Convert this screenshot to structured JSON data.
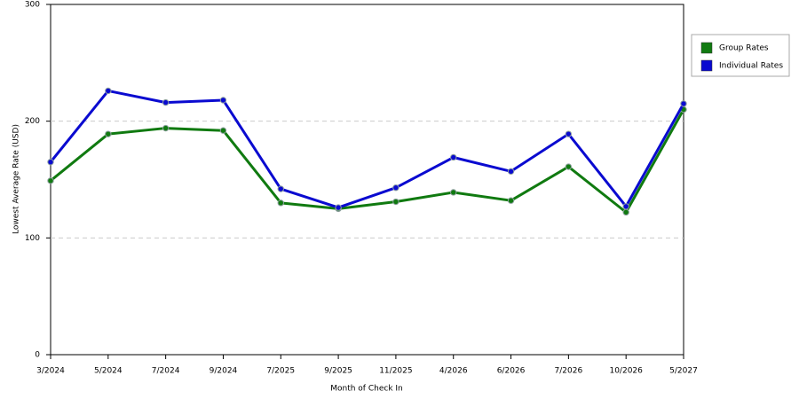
{
  "chart_data": {
    "type": "line",
    "x_label": "Month of Check In",
    "y_label": "Lowest Average Rate (USD)",
    "categories": [
      "3/2024",
      "5/2024",
      "7/2024",
      "9/2024",
      "7/2025",
      "9/2025",
      "11/2025",
      "4/2026",
      "6/2026",
      "7/2026",
      "10/2026",
      "5/2027"
    ],
    "series": [
      {
        "name": "Group Rates",
        "color": "#107a10",
        "values": [
          149,
          189,
          194,
          192,
          130,
          125,
          131,
          139,
          132,
          161,
          122,
          210
        ]
      },
      {
        "name": "Individual Rates",
        "color": "#0a0ad0",
        "values": [
          165,
          226,
          216,
          218,
          142,
          126,
          143,
          169,
          157,
          189,
          127,
          215
        ]
      }
    ],
    "ylim": [
      0,
      300
    ],
    "yticks": [
      0,
      100,
      200,
      300
    ],
    "grid": true,
    "legend": "right"
  }
}
